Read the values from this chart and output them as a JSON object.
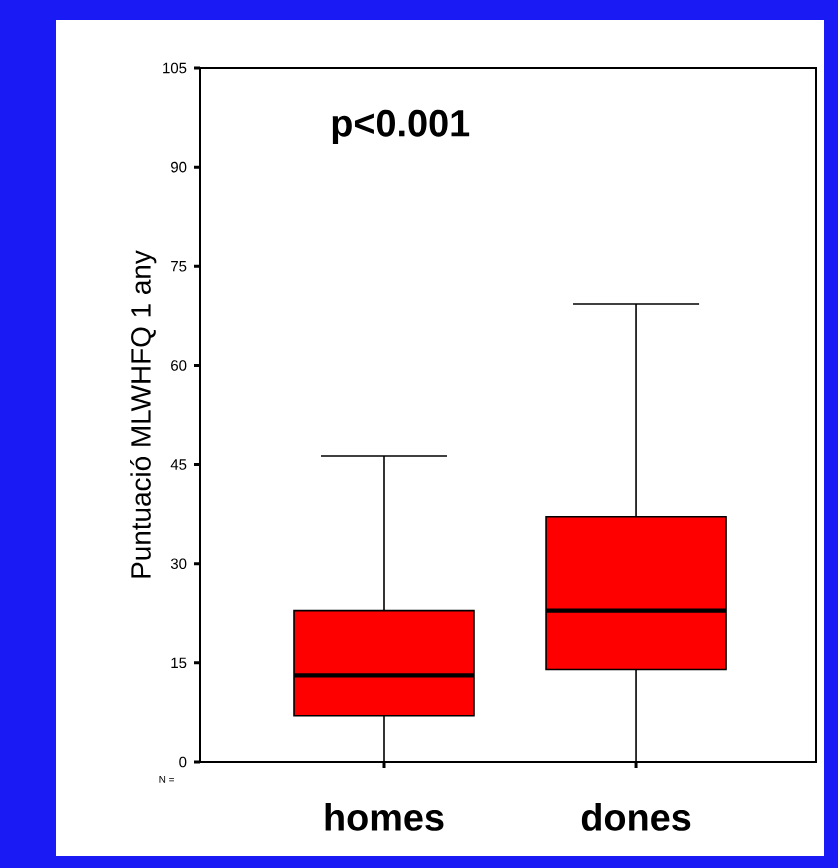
{
  "chart_data": {
    "type": "box",
    "categories": [
      "homes",
      "dones"
    ],
    "boxes": [
      {
        "low": 0,
        "q1": 7,
        "median": 13.1,
        "q3": 22.9,
        "high": 46.3
      },
      {
        "low": 0,
        "q1": 14,
        "median": 22.9,
        "q3": 37.1,
        "high": 69.3
      }
    ],
    "color": "#ff0000",
    "ylabel": "Puntuació MLWHFQ 1 any",
    "ylim": [
      0,
      105
    ],
    "yticks": [
      0,
      15,
      30,
      45,
      60,
      75,
      90,
      105
    ],
    "annotations": [
      "p<0.001",
      "N ="
    ]
  }
}
